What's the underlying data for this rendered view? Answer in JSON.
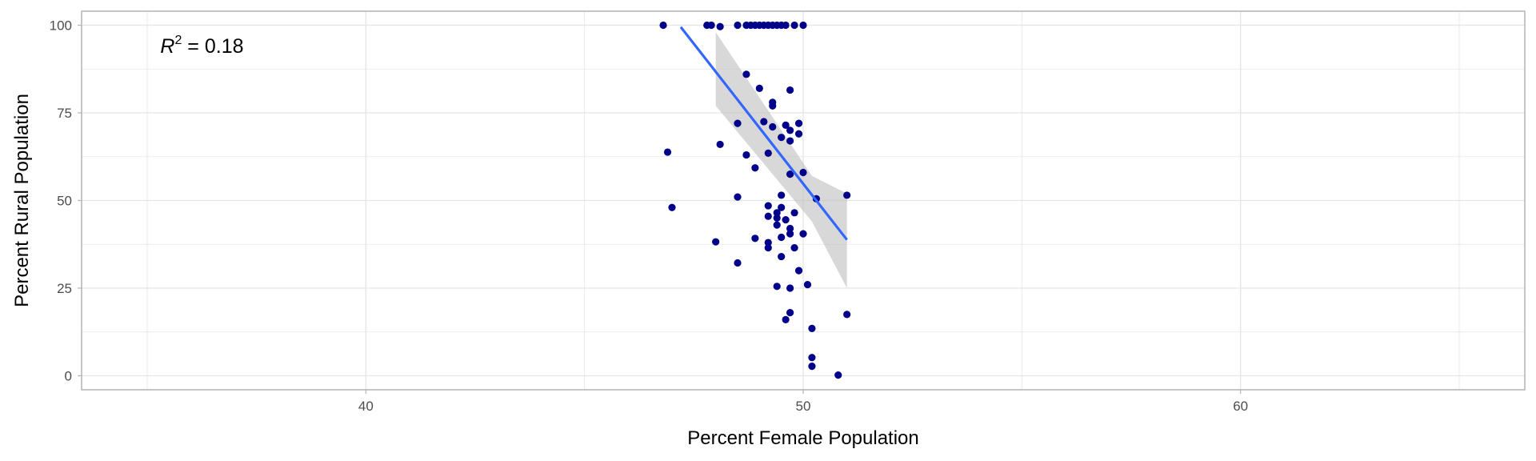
{
  "chart_data": {
    "type": "scatter",
    "title": "",
    "xlabel": "Percent Female Population",
    "ylabel": "Percent Rural Population",
    "xlim": [
      33.5,
      66.5
    ],
    "ylim": [
      -4,
      104
    ],
    "x_ticks": [
      40,
      50,
      60
    ],
    "x_tick_labels": [
      "40",
      "50",
      "60"
    ],
    "y_ticks": [
      0,
      25,
      50,
      75,
      100
    ],
    "y_tick_labels": [
      "0",
      "25",
      "50",
      "75",
      "100"
    ],
    "grid": true,
    "legend": "none",
    "annotation": {
      "r_symbol": "R",
      "exponent": "2",
      "equals": " = ",
      "value": "0.18",
      "x": 35.3,
      "y": 94
    },
    "colors": {
      "points": "#00008b",
      "fit_line": "#3366ff",
      "ribbon": "#bebebe",
      "grid": "#e5e5e5",
      "panel_border": "#b3b3b3"
    },
    "points": [
      {
        "x": 46.8,
        "y": 100
      },
      {
        "x": 47.8,
        "y": 100
      },
      {
        "x": 47.9,
        "y": 100
      },
      {
        "x": 48.1,
        "y": 99.6
      },
      {
        "x": 48.5,
        "y": 100
      },
      {
        "x": 48.7,
        "y": 100
      },
      {
        "x": 48.8,
        "y": 100
      },
      {
        "x": 48.9,
        "y": 100
      },
      {
        "x": 49.0,
        "y": 100
      },
      {
        "x": 49.1,
        "y": 100
      },
      {
        "x": 49.2,
        "y": 100
      },
      {
        "x": 49.3,
        "y": 100
      },
      {
        "x": 49.4,
        "y": 100
      },
      {
        "x": 49.5,
        "y": 100
      },
      {
        "x": 49.6,
        "y": 100
      },
      {
        "x": 49.8,
        "y": 100
      },
      {
        "x": 50.0,
        "y": 100
      },
      {
        "x": 48.7,
        "y": 86
      },
      {
        "x": 49.0,
        "y": 82
      },
      {
        "x": 49.7,
        "y": 81.5
      },
      {
        "x": 49.3,
        "y": 78
      },
      {
        "x": 49.3,
        "y": 77
      },
      {
        "x": 48.5,
        "y": 72
      },
      {
        "x": 49.1,
        "y": 72.5
      },
      {
        "x": 49.3,
        "y": 71
      },
      {
        "x": 49.6,
        "y": 71.5
      },
      {
        "x": 49.7,
        "y": 70
      },
      {
        "x": 49.9,
        "y": 72
      },
      {
        "x": 49.9,
        "y": 69
      },
      {
        "x": 49.5,
        "y": 68
      },
      {
        "x": 49.7,
        "y": 67
      },
      {
        "x": 46.9,
        "y": 63.8
      },
      {
        "x": 48.1,
        "y": 66
      },
      {
        "x": 48.7,
        "y": 63
      },
      {
        "x": 49.2,
        "y": 63.5
      },
      {
        "x": 48.9,
        "y": 59.3
      },
      {
        "x": 50.0,
        "y": 58
      },
      {
        "x": 49.7,
        "y": 57.5
      },
      {
        "x": 49.5,
        "y": 51.5
      },
      {
        "x": 48.5,
        "y": 51
      },
      {
        "x": 51.0,
        "y": 51.5
      },
      {
        "x": 50.3,
        "y": 50.5
      },
      {
        "x": 47.0,
        "y": 48
      },
      {
        "x": 49.2,
        "y": 48.5
      },
      {
        "x": 49.5,
        "y": 48
      },
      {
        "x": 49.4,
        "y": 46.5
      },
      {
        "x": 49.8,
        "y": 46.5
      },
      {
        "x": 49.2,
        "y": 45.5
      },
      {
        "x": 49.4,
        "y": 45
      },
      {
        "x": 49.6,
        "y": 44.5
      },
      {
        "x": 49.4,
        "y": 43
      },
      {
        "x": 49.7,
        "y": 42
      },
      {
        "x": 50.0,
        "y": 40.5
      },
      {
        "x": 48.9,
        "y": 39.2
      },
      {
        "x": 49.5,
        "y": 39.5
      },
      {
        "x": 49.7,
        "y": 40.5
      },
      {
        "x": 49.2,
        "y": 38
      },
      {
        "x": 49.2,
        "y": 36.5
      },
      {
        "x": 49.8,
        "y": 36.5
      },
      {
        "x": 48.0,
        "y": 38.2
      },
      {
        "x": 49.5,
        "y": 34
      },
      {
        "x": 48.5,
        "y": 32.2
      },
      {
        "x": 49.9,
        "y": 30
      },
      {
        "x": 50.1,
        "y": 26
      },
      {
        "x": 49.4,
        "y": 25.5
      },
      {
        "x": 49.7,
        "y": 25
      },
      {
        "x": 49.7,
        "y": 18
      },
      {
        "x": 51.0,
        "y": 17.5
      },
      {
        "x": 49.6,
        "y": 16
      },
      {
        "x": 50.2,
        "y": 13.5
      },
      {
        "x": 50.2,
        "y": 5.2
      },
      {
        "x": 50.2,
        "y": 2.7
      },
      {
        "x": 50.8,
        "y": 0.2
      }
    ],
    "fit": {
      "method": "lm",
      "x": [
        47.2,
        51.0
      ],
      "y": [
        99.5,
        38.8
      ],
      "ribbon": [
        {
          "x": 48.0,
          "lower": 77,
          "upper": 98
        },
        {
          "x": 50.2,
          "lower": 44,
          "upper": 57
        },
        {
          "x": 51.0,
          "lower": 25,
          "upper": 52
        }
      ]
    }
  }
}
